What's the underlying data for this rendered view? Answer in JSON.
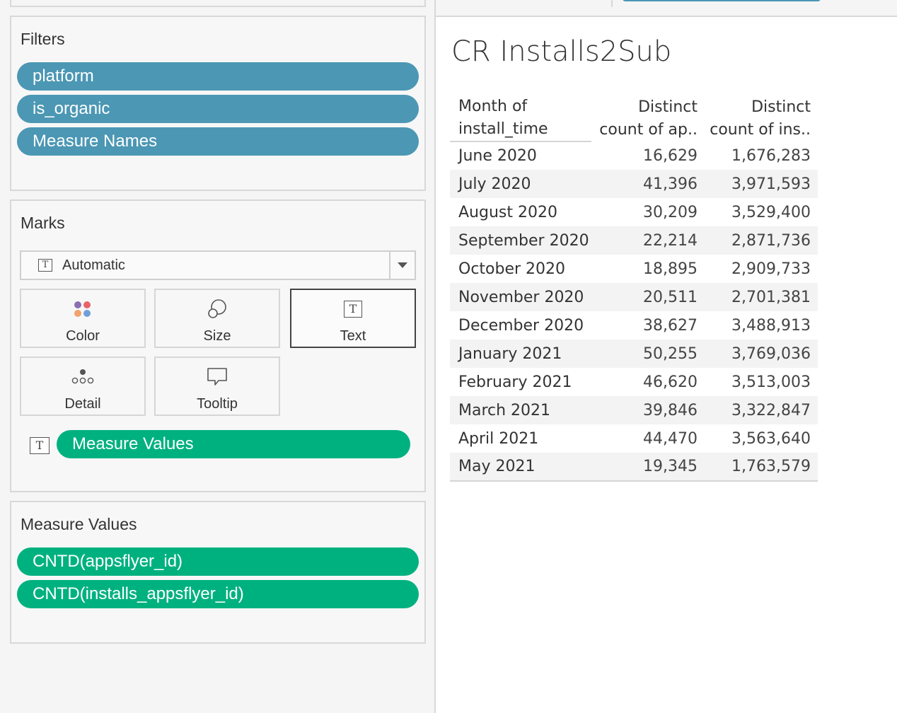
{
  "filters": {
    "title": "Filters",
    "pills": [
      "platform",
      "is_organic",
      "Measure Names"
    ]
  },
  "marks": {
    "title": "Marks",
    "mark_type": "Automatic",
    "buttons": {
      "color": "Color",
      "size": "Size",
      "text": "Text",
      "detail": "Detail",
      "tooltip": "Tooltip"
    },
    "text_pill": "Measure Values"
  },
  "measure_values": {
    "title": "Measure Values",
    "pills": [
      "CNTD(appsflyer_id)",
      "CNTD(installs_appsflyer_id)"
    ]
  },
  "colors": {
    "dimension_pill": "#4b97b4",
    "measure_pill": "#00b180"
  },
  "sheet": {
    "title": "CR Installs2Sub",
    "headers": {
      "col0_line1": "Month of",
      "col0_line2": "install_time",
      "col1_line1": "Distinct",
      "col1_line2": "count of ap..",
      "col2_line1": "Distinct",
      "col2_line2": "count of ins.."
    },
    "rows": [
      {
        "month": "June 2020",
        "apps": "16,629",
        "installs": "1,676,283"
      },
      {
        "month": "July 2020",
        "apps": "41,396",
        "installs": "3,971,593"
      },
      {
        "month": "August 2020",
        "apps": "30,209",
        "installs": "3,529,400"
      },
      {
        "month": "September 2020",
        "apps": "22,214",
        "installs": "2,871,736"
      },
      {
        "month": "October 2020",
        "apps": "18,895",
        "installs": "2,909,733"
      },
      {
        "month": "November 2020",
        "apps": "20,511",
        "installs": "2,701,381"
      },
      {
        "month": "December 2020",
        "apps": "38,627",
        "installs": "3,488,913"
      },
      {
        "month": "January 2021",
        "apps": "50,255",
        "installs": "3,769,036"
      },
      {
        "month": "February 2021",
        "apps": "46,620",
        "installs": "3,513,003"
      },
      {
        "month": "March 2021",
        "apps": "39,846",
        "installs": "3,322,847"
      },
      {
        "month": "April 2021",
        "apps": "44,470",
        "installs": "3,563,640"
      },
      {
        "month": "May 2021",
        "apps": "19,345",
        "installs": "1,763,579"
      }
    ]
  }
}
